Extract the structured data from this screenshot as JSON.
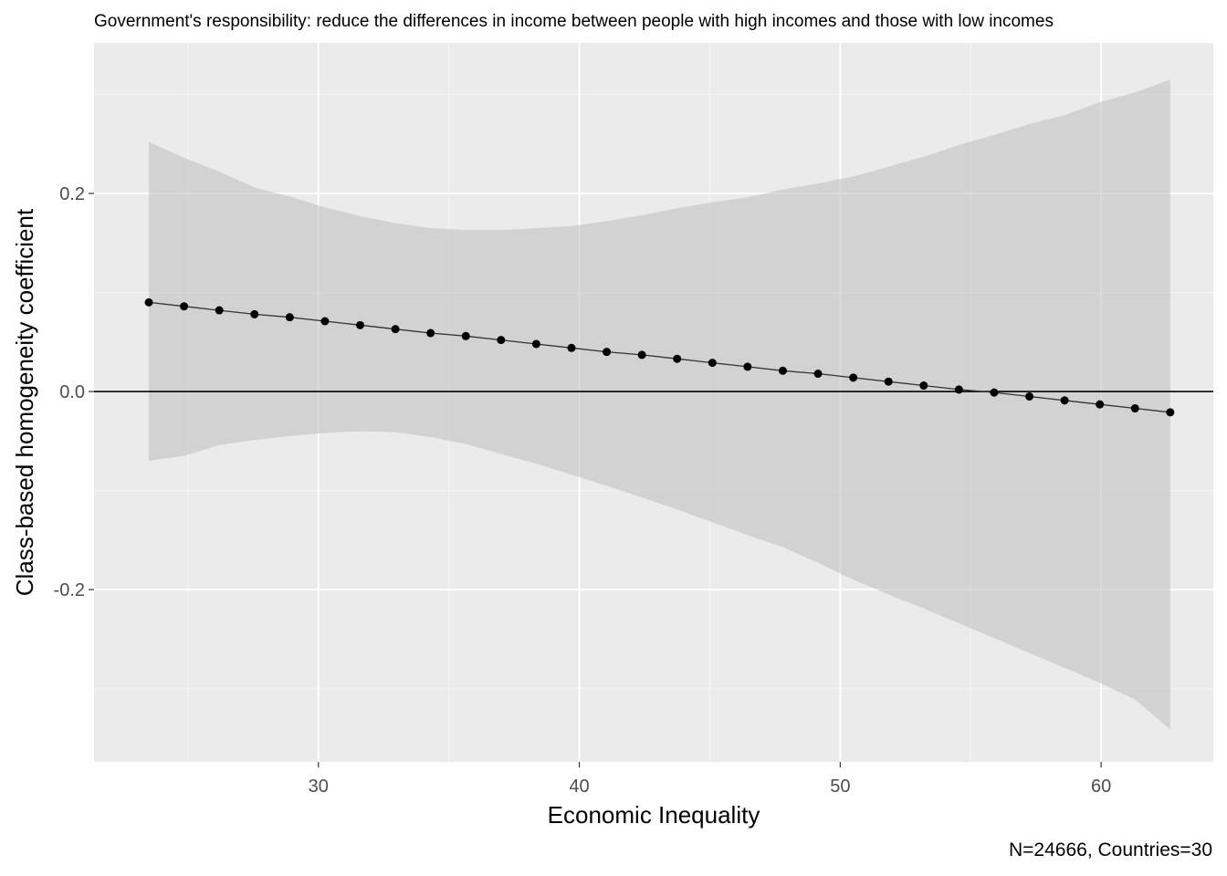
{
  "chart_data": {
    "type": "line",
    "title": "Government's responsibility: reduce the differences in income between people with high incomes and those with low incomes",
    "xlabel": "Economic Inequality",
    "ylabel": "Class-based homogeneity coefficient",
    "caption": "N=24666, Countries=30",
    "xlim": [
      21.4,
      64.3
    ],
    "ylim": [
      -0.374,
      0.352
    ],
    "x_ticks": [
      30,
      40,
      50,
      60
    ],
    "x_tick_labels": [
      "30",
      "40",
      "50",
      "60"
    ],
    "y_ticks": [
      -0.2,
      0.0,
      0.2
    ],
    "y_tick_labels": [
      "-0.2",
      "0.0",
      "0.2"
    ],
    "hline": 0,
    "grid": true,
    "series": [
      {
        "x": [
          23.5,
          24.85,
          26.2,
          27.55,
          28.9,
          30.25,
          31.6,
          32.95,
          34.3,
          35.65,
          37.0,
          38.35,
          39.7,
          41.05,
          42.4,
          43.75,
          45.1,
          46.45,
          47.8,
          49.15,
          50.5,
          51.85,
          53.2,
          54.55,
          55.9,
          57.25,
          58.6,
          59.95,
          61.3,
          62.65
        ],
        "y": [
          0.09,
          0.086,
          0.082,
          0.078,
          0.075,
          0.071,
          0.067,
          0.063,
          0.059,
          0.056,
          0.052,
          0.048,
          0.044,
          0.04,
          0.037,
          0.033,
          0.029,
          0.025,
          0.021,
          0.018,
          0.014,
          0.01,
          0.006,
          0.002,
          -0.001,
          -0.005,
          -0.009,
          -0.013,
          -0.017,
          -0.021
        ],
        "ci_lower": [
          -0.07,
          -0.065,
          -0.054,
          -0.049,
          -0.045,
          -0.042,
          -0.04,
          -0.041,
          -0.046,
          -0.053,
          -0.063,
          -0.073,
          -0.084,
          -0.095,
          -0.107,
          -0.119,
          -0.132,
          -0.145,
          -0.157,
          -0.173,
          -0.19,
          -0.205,
          -0.219,
          -0.234,
          -0.249,
          -0.264,
          -0.279,
          -0.294,
          -0.311,
          -0.341
        ],
        "ci_upper": [
          0.252,
          0.236,
          0.222,
          0.206,
          0.197,
          0.186,
          0.177,
          0.17,
          0.165,
          0.163,
          0.163,
          0.165,
          0.167,
          0.172,
          0.178,
          0.185,
          0.191,
          0.196,
          0.204,
          0.21,
          0.217,
          0.227,
          0.237,
          0.249,
          0.259,
          0.27,
          0.279,
          0.292,
          0.302,
          0.315
        ]
      }
    ],
    "colors": {
      "panel_bg": "#ebebeb",
      "grid_major": "#ffffff",
      "grid_minor": "#f5f5f5",
      "ribbon": "#bdbdbd",
      "line": "#333333",
      "point": "#000000",
      "axis_text": "#4d4d4d"
    }
  }
}
